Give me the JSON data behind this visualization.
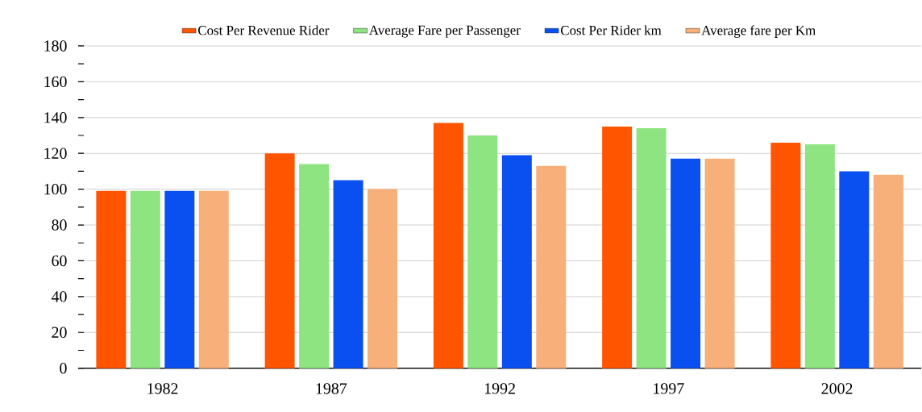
{
  "chart_data": {
    "type": "bar",
    "categories": [
      "1982",
      "1987",
      "1992",
      "1997",
      "2002"
    ],
    "series": [
      {
        "name": "Cost Per Revenue Rider",
        "color": "#ff5500",
        "values": [
          99,
          120,
          137,
          135,
          126
        ]
      },
      {
        "name": "Average Fare per Passenger",
        "color": "#8ee480",
        "values": [
          99,
          114,
          130,
          134,
          125
        ]
      },
      {
        "name": "Cost Per Rider km",
        "color": "#0a4ff0",
        "values": [
          99,
          105,
          119,
          117,
          110
        ]
      },
      {
        "name": "Average fare per Km",
        "color": "#f7b07a",
        "values": [
          99,
          100,
          113,
          117,
          108
        ]
      }
    ],
    "ylim": [
      0,
      180
    ],
    "yticks": [
      0,
      20,
      40,
      60,
      80,
      100,
      120,
      140,
      160,
      180
    ],
    "grid": "y",
    "legend": "top"
  }
}
